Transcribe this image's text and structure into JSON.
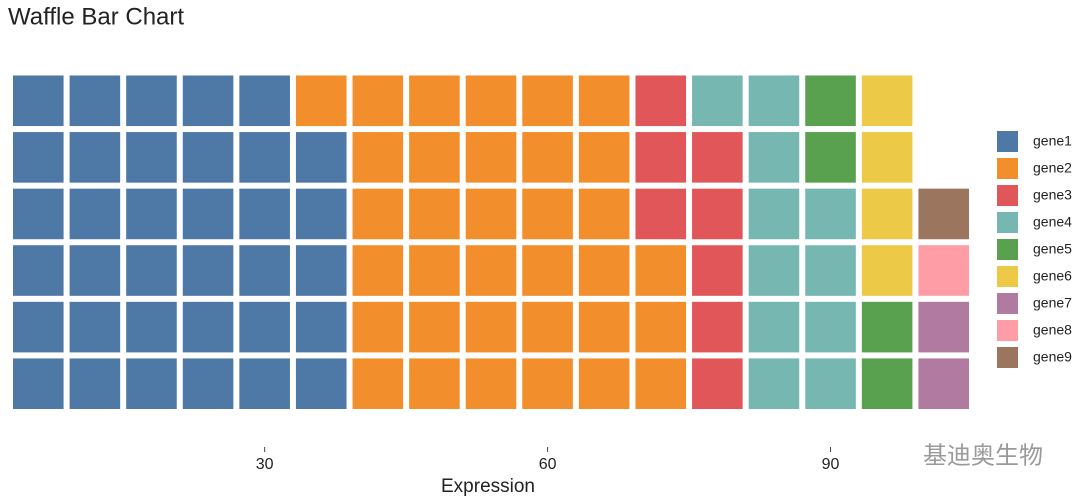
{
  "chart_data": {
    "type": "waffle",
    "title": "Waffle Bar Chart",
    "x_label": "Expression",
    "xlim": [
      3,
      105
    ],
    "xticks": [
      30,
      60,
      90
    ],
    "legend": "right",
    "series": [
      {
        "name": "gene1",
        "color": "#4e79a7",
        "values": [
          35
        ]
      },
      {
        "name": "gene2",
        "color": "#f28e2b",
        "values": [
          34
        ]
      },
      {
        "name": "gene3",
        "color": "#e15759",
        "values": [
          8
        ]
      },
      {
        "name": "gene4",
        "color": "#76b7b2",
        "values": [
          11
        ]
      },
      {
        "name": "gene5",
        "color": "#59a14f",
        "values": [
          4
        ]
      },
      {
        "name": "gene6",
        "color": "#edc948",
        "values": [
          4
        ]
      },
      {
        "name": "gene7",
        "color": "#b07aa1",
        "values": [
          2
        ]
      },
      {
        "name": "gene8",
        "color": "#ff9da7",
        "values": [
          1
        ]
      },
      {
        "name": "gene9",
        "color": "#9c755f",
        "values": [
          1
        ]
      }
    ]
  },
  "watermark": "基迪奥生物"
}
